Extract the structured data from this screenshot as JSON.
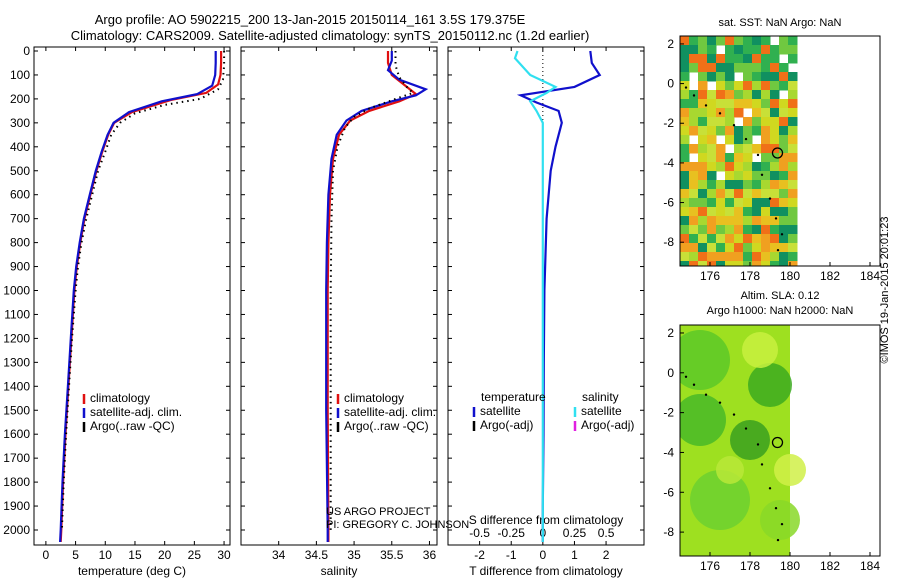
{
  "header": {
    "line1": "Argo profile: AO 5902215_200 13-Jan-2015 20150114_161 3.5S 179.375E",
    "line2": "Climatology: CARS2009. Satellite-adjusted climatology: synTS_20150112.nc (1.2d earlier)"
  },
  "project": {
    "line1": "US ARGO PROJECT",
    "line2": "PI: GREGORY C. JOHNSON"
  },
  "credit": "©IMOS 19-Jan-2015 20:01:23",
  "colors": {
    "climatology": "#e01010",
    "satellite": "#1010cc",
    "argo": "#000000",
    "salinity_satellite": "#30e0f0",
    "salinity_argo": "#e020e0"
  },
  "chart_data": [
    {
      "type": "line",
      "id": "temperature",
      "xlabel": "temperature (deg C)",
      "ylabel": "",
      "xlim": [
        -2,
        31
      ],
      "ylim": [
        2070,
        0
      ],
      "xticks": [
        0,
        5,
        10,
        15,
        20,
        25,
        30
      ],
      "yticks": [
        0,
        100,
        200,
        300,
        400,
        500,
        600,
        700,
        800,
        900,
        1000,
        1100,
        1200,
        1300,
        1400,
        1500,
        1600,
        1700,
        1800,
        1900,
        2000
      ],
      "legend": [
        "climatology",
        "satellite-adj. clim.",
        "Argo(..raw -QC)"
      ],
      "series": [
        {
          "name": "climatology",
          "style": "solid",
          "color": "climatology",
          "points": [
            [
              29.5,
              0
            ],
            [
              29.5,
              50
            ],
            [
              29.4,
              100
            ],
            [
              29.0,
              140
            ],
            [
              27.0,
              175
            ],
            [
              21.0,
              205
            ],
            [
              14.5,
              255
            ],
            [
              11.5,
              300
            ],
            [
              10.5,
              350
            ],
            [
              9.5,
              420
            ],
            [
              8.5,
              500
            ],
            [
              7.5,
              600
            ],
            [
              6.5,
              700
            ],
            [
              5.8,
              800
            ],
            [
              5.2,
              900
            ],
            [
              4.8,
              1000
            ],
            [
              4.3,
              1200
            ],
            [
              3.8,
              1400
            ],
            [
              3.3,
              1600
            ],
            [
              2.9,
              1800
            ],
            [
              2.6,
              2000
            ],
            [
              2.5,
              2050
            ]
          ]
        },
        {
          "name": "satellite-adj. clim.",
          "style": "solid",
          "color": "satellite",
          "points": [
            [
              28.6,
              0
            ],
            [
              28.6,
              50
            ],
            [
              28.5,
              100
            ],
            [
              28.0,
              145
            ],
            [
              25.5,
              180
            ],
            [
              19.5,
              210
            ],
            [
              14.0,
              255
            ],
            [
              11.4,
              300
            ],
            [
              10.4,
              350
            ],
            [
              9.4,
              420
            ],
            [
              8.4,
              500
            ],
            [
              7.4,
              600
            ],
            [
              6.4,
              700
            ],
            [
              5.7,
              800
            ],
            [
              5.1,
              900
            ],
            [
              4.7,
              1000
            ],
            [
              4.2,
              1200
            ],
            [
              3.7,
              1400
            ],
            [
              3.2,
              1600
            ],
            [
              2.8,
              1800
            ],
            [
              2.5,
              2000
            ],
            [
              2.4,
              2050
            ]
          ]
        },
        {
          "name": "Argo(..raw -QC)",
          "style": "dotted",
          "color": "argo",
          "points": [
            [
              30.0,
              0
            ],
            [
              30.0,
              60
            ],
            [
              29.8,
              120
            ],
            [
              29.0,
              160
            ],
            [
              26.0,
              200
            ],
            [
              20.0,
              225
            ],
            [
              15.0,
              260
            ],
            [
              12.5,
              300
            ],
            [
              11.0,
              350
            ],
            [
              10.0,
              420
            ],
            [
              8.8,
              500
            ],
            [
              7.8,
              600
            ],
            [
              6.8,
              700
            ],
            [
              6.0,
              800
            ],
            [
              5.4,
              900
            ],
            [
              5.0,
              1000
            ],
            [
              4.4,
              1200
            ],
            [
              3.9,
              1400
            ],
            [
              3.4,
              1600
            ],
            [
              3.0,
              1800
            ],
            [
              2.7,
              2000
            ]
          ]
        }
      ]
    },
    {
      "type": "line",
      "id": "salinity",
      "xlabel": "salinity",
      "ylabel": "",
      "xlim": [
        33.5,
        36.1
      ],
      "ylim": [
        2070,
        0
      ],
      "xticks": [
        34,
        34.5,
        35,
        35.5,
        36
      ],
      "xticklabels": [
        "34",
        "34.5",
        "35",
        "35.5",
        "36"
      ],
      "legend": [
        "climatology",
        "satellite-adj. clim.",
        "Argo(..raw -QC)"
      ],
      "series": [
        {
          "name": "climatology",
          "style": "solid",
          "color": "climatology",
          "points": [
            [
              35.45,
              0
            ],
            [
              35.45,
              50
            ],
            [
              35.5,
              100
            ],
            [
              35.7,
              150
            ],
            [
              35.82,
              180
            ],
            [
              35.6,
              210
            ],
            [
              35.2,
              250
            ],
            [
              34.95,
              290
            ],
            [
              34.8,
              350
            ],
            [
              34.72,
              450
            ],
            [
              34.68,
              600
            ],
            [
              34.66,
              800
            ],
            [
              34.65,
              1000
            ],
            [
              34.65,
              1500
            ],
            [
              34.66,
              2000
            ],
            [
              34.66,
              2050
            ]
          ]
        },
        {
          "name": "satellite-adj. clim.",
          "style": "solid",
          "color": "satellite",
          "points": [
            [
              35.5,
              0
            ],
            [
              35.5,
              40
            ],
            [
              35.45,
              80
            ],
            [
              35.6,
              120
            ],
            [
              35.95,
              160
            ],
            [
              35.82,
              185
            ],
            [
              35.5,
              210
            ],
            [
              35.1,
              250
            ],
            [
              34.9,
              290
            ],
            [
              34.77,
              350
            ],
            [
              34.7,
              450
            ],
            [
              34.66,
              600
            ],
            [
              34.64,
              800
            ],
            [
              34.63,
              1000
            ],
            [
              34.63,
              1500
            ],
            [
              34.65,
              2000
            ],
            [
              34.65,
              2050
            ]
          ]
        },
        {
          "name": "Argo(..raw -QC)",
          "style": "dotted",
          "color": "argo",
          "points": [
            [
              35.55,
              0
            ],
            [
              35.55,
              60
            ],
            [
              35.6,
              110
            ],
            [
              35.7,
              150
            ],
            [
              35.78,
              175
            ],
            [
              35.55,
              200
            ],
            [
              35.2,
              240
            ],
            [
              35.0,
              275
            ],
            [
              34.88,
              320
            ],
            [
              34.78,
              400
            ],
            [
              34.72,
              500
            ],
            [
              34.7,
              700
            ],
            [
              34.69,
              1000
            ],
            [
              34.69,
              1500
            ],
            [
              34.69,
              2000
            ]
          ]
        }
      ]
    },
    {
      "type": "line",
      "id": "difference",
      "xlabel": "T difference from climatology",
      "xlabel_top": "S difference from climatology",
      "xlim": [
        -3,
        3.2
      ],
      "ylim": [
        2070,
        0
      ],
      "xticks": [
        -2,
        -1,
        0,
        1,
        2
      ],
      "xticks_top": [
        -0.5,
        -0.25,
        0,
        0.25,
        0.5
      ],
      "xticklabels_top": [
        "-0.5",
        "-0.25",
        "0",
        "0.25",
        "0.5"
      ],
      "s_scale": 4,
      "legend_temperature": [
        "temperature",
        "satellite",
        "Argo(-adj)"
      ],
      "legend_salinity": [
        "salinity",
        "satellite",
        "Argo(-adj)"
      ],
      "series": [
        {
          "name": "satellite",
          "style": "solid",
          "color": "satellite",
          "quantity": "temperature",
          "points": [
            [
              1.5,
              0
            ],
            [
              1.55,
              50
            ],
            [
              1.8,
              100
            ],
            [
              1.0,
              150
            ],
            [
              -0.7,
              185
            ],
            [
              -0.2,
              215
            ],
            [
              0.5,
              250
            ],
            [
              0.6,
              300
            ],
            [
              0.4,
              400
            ],
            [
              0.25,
              500
            ],
            [
              0.12,
              700
            ],
            [
              0.05,
              1000
            ],
            [
              0.03,
              1300
            ],
            [
              0.02,
              1600
            ],
            [
              0.0,
              1900
            ],
            [
              0.0,
              2050
            ]
          ]
        },
        {
          "name": "satellite",
          "style": "solid",
          "color": "salinity_satellite",
          "quantity": "salinity",
          "points": [
            [
              -0.2,
              0
            ],
            [
              -0.22,
              30
            ],
            [
              -0.1,
              100
            ],
            [
              0.1,
              150
            ],
            [
              0.03,
              175
            ],
            [
              -0.1,
              210
            ],
            [
              -0.05,
              250
            ],
            [
              0.0,
              300
            ],
            [
              0.0,
              500
            ],
            [
              0.0,
              1000
            ],
            [
              0.0,
              1500
            ],
            [
              0.0,
              2050
            ]
          ]
        }
      ]
    },
    {
      "type": "heatmap",
      "id": "sst-map",
      "title": "sat. SST: NaN Argo: NaN",
      "xlim": [
        174.5,
        184.5
      ],
      "ylim": [
        -9.2,
        2.4
      ],
      "xticks": [
        176,
        178,
        180,
        182,
        184
      ],
      "yticks": [
        2,
        0,
        -2,
        -4,
        -6,
        -8
      ],
      "profile_location": [
        179.375,
        -3.5
      ]
    },
    {
      "type": "heatmap",
      "id": "sla-map",
      "title": "Altim. SLA: 0.12",
      "subtitle": "Argo h1000: NaN h2000: NaN",
      "xlim": [
        174.5,
        184.5
      ],
      "ylim": [
        -9.2,
        2.4
      ],
      "xticks": [
        176,
        178,
        180,
        182,
        184
      ],
      "yticks": [
        2,
        0,
        -2,
        -4,
        -6,
        -8
      ],
      "profile_location": [
        179.375,
        -3.5
      ]
    }
  ]
}
